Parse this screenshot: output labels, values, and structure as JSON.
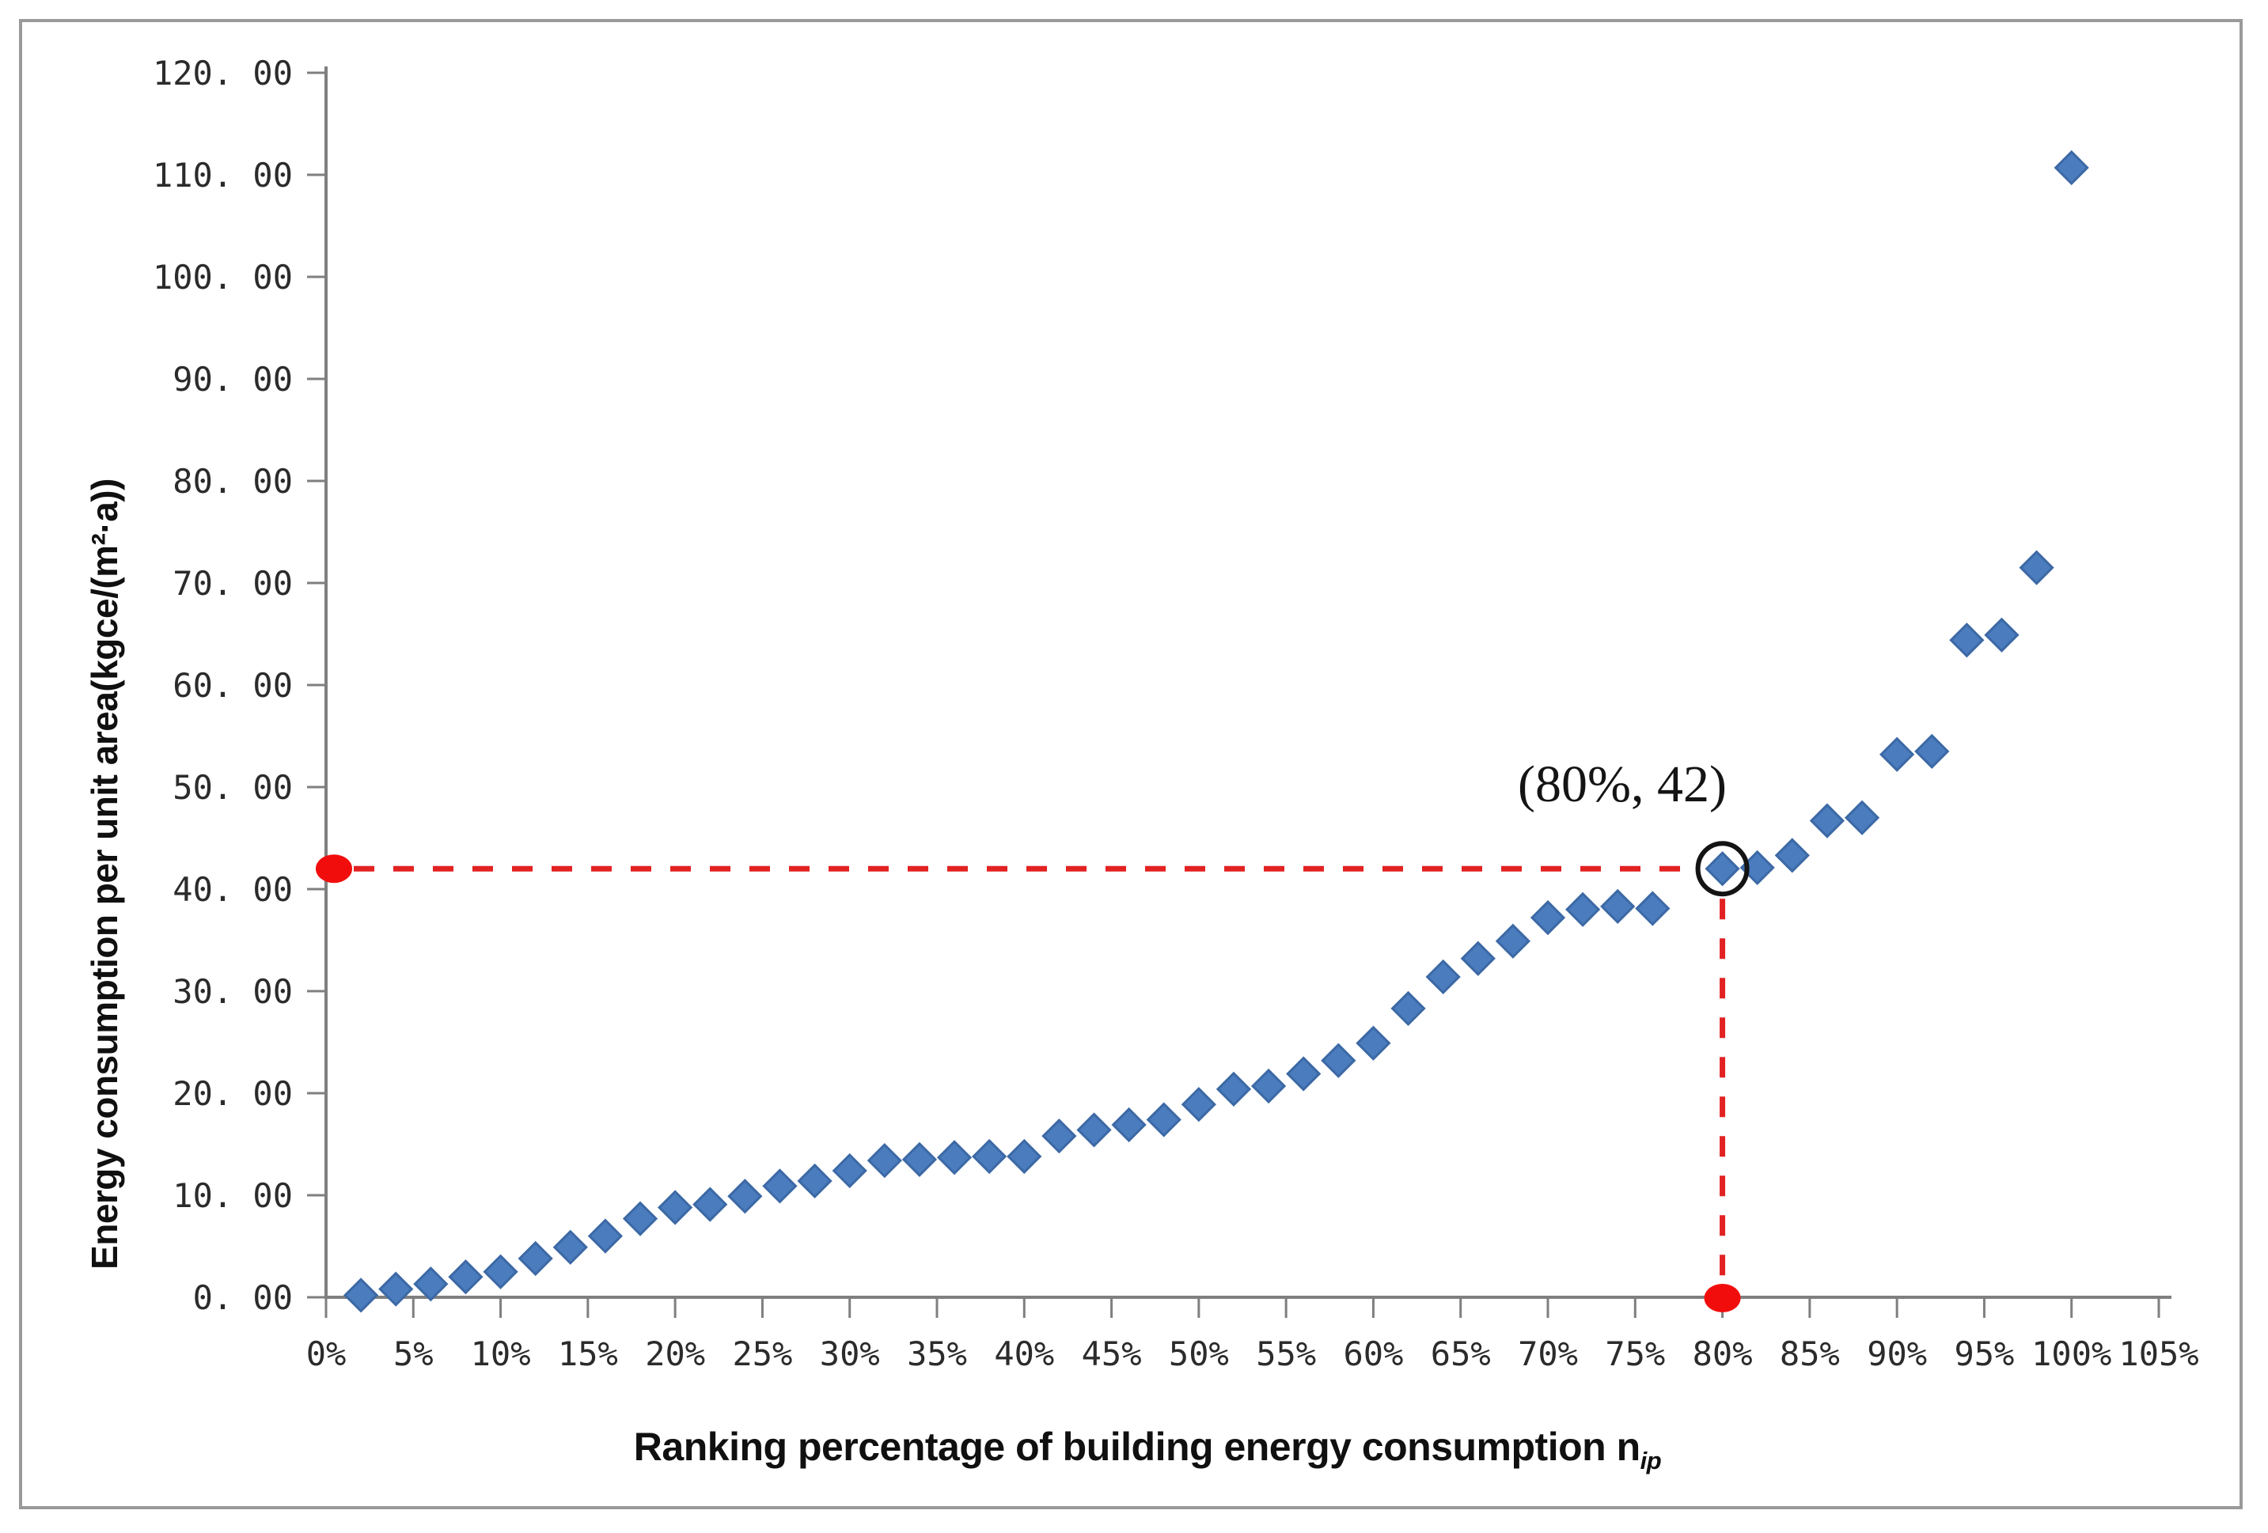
{
  "figure": {
    "background": "#ffffff",
    "border_color": "#9a9a9a"
  },
  "chart_data": {
    "type": "scatter",
    "title": "",
    "xlabel": "Ranking percentage of building energy consumption n",
    "xlabel_sub": "ip",
    "ylabel": "Energy consumption per unit area(kgce/(m²·a))",
    "xlim": [
      0,
      105
    ],
    "ylim": [
      0,
      120
    ],
    "grid": false,
    "legend": null,
    "x_tick_values": [
      0,
      5,
      10,
      15,
      20,
      25,
      30,
      35,
      40,
      45,
      50,
      55,
      60,
      65,
      70,
      75,
      80,
      85,
      90,
      95,
      100,
      105
    ],
    "x_tick_labels": [
      "0%",
      "5%",
      "10%",
      "15%",
      "20%",
      "25%",
      "30%",
      "35%",
      "40%",
      "45%",
      "50%",
      "55%",
      "60%",
      "65%",
      "70%",
      "75%",
      "80%",
      "85%",
      "90%",
      "95%",
      "100%",
      "105%"
    ],
    "y_tick_values": [
      0,
      10,
      20,
      30,
      40,
      50,
      60,
      70,
      80,
      90,
      100,
      110,
      120
    ],
    "y_tick_labels": [
      "0. 00",
      "10. 00",
      "20. 00",
      "30. 00",
      "40. 00",
      "50. 00",
      "60. 00",
      "70. 00",
      "80. 00",
      "90. 00",
      "100. 00",
      "110. 00",
      "120. 00"
    ],
    "series": [
      {
        "marker": "diamond",
        "color": "#4a7cbe",
        "edge_color": "#3c69a5",
        "points": [
          [
            2,
            0.2
          ],
          [
            4,
            0.8
          ],
          [
            6,
            1.3
          ],
          [
            8,
            2.0
          ],
          [
            10,
            2.5
          ],
          [
            12,
            3.8
          ],
          [
            14,
            4.9
          ],
          [
            16,
            6.0
          ],
          [
            18,
            7.7
          ],
          [
            20,
            8.8
          ],
          [
            22,
            9.1
          ],
          [
            24,
            9.9
          ],
          [
            26,
            10.9
          ],
          [
            28,
            11.4
          ],
          [
            30,
            12.4
          ],
          [
            32,
            13.4
          ],
          [
            34,
            13.5
          ],
          [
            36,
            13.7
          ],
          [
            38,
            13.8
          ],
          [
            40,
            13.8
          ],
          [
            42,
            15.8
          ],
          [
            44,
            16.4
          ],
          [
            46,
            16.9
          ],
          [
            48,
            17.4
          ],
          [
            50,
            18.9
          ],
          [
            52,
            20.4
          ],
          [
            54,
            20.7
          ],
          [
            56,
            21.9
          ],
          [
            58,
            23.2
          ],
          [
            60,
            24.9
          ],
          [
            62,
            28.3
          ],
          [
            64,
            31.4
          ],
          [
            66,
            33.2
          ],
          [
            68,
            34.9
          ],
          [
            70,
            37.2
          ],
          [
            72,
            38.0
          ],
          [
            74,
            38.3
          ],
          [
            76,
            38.1
          ],
          [
            80,
            42.0
          ],
          [
            82,
            42.1
          ],
          [
            84,
            43.3
          ],
          [
            86,
            46.7
          ],
          [
            88,
            47.0
          ],
          [
            90,
            53.2
          ],
          [
            92,
            53.5
          ],
          [
            94,
            64.4
          ],
          [
            96,
            64.9
          ],
          [
            98,
            71.5
          ],
          [
            100,
            110.7
          ]
        ]
      }
    ],
    "annotation": {
      "label": "(80%, 42)",
      "x": 80,
      "y": 42,
      "circle_color": "#141414",
      "guide_color": "#e22222",
      "dot_color": "#f20d0d"
    },
    "axis_color": "#7f7f7f",
    "tick_label_color": "#2b2b2b"
  }
}
